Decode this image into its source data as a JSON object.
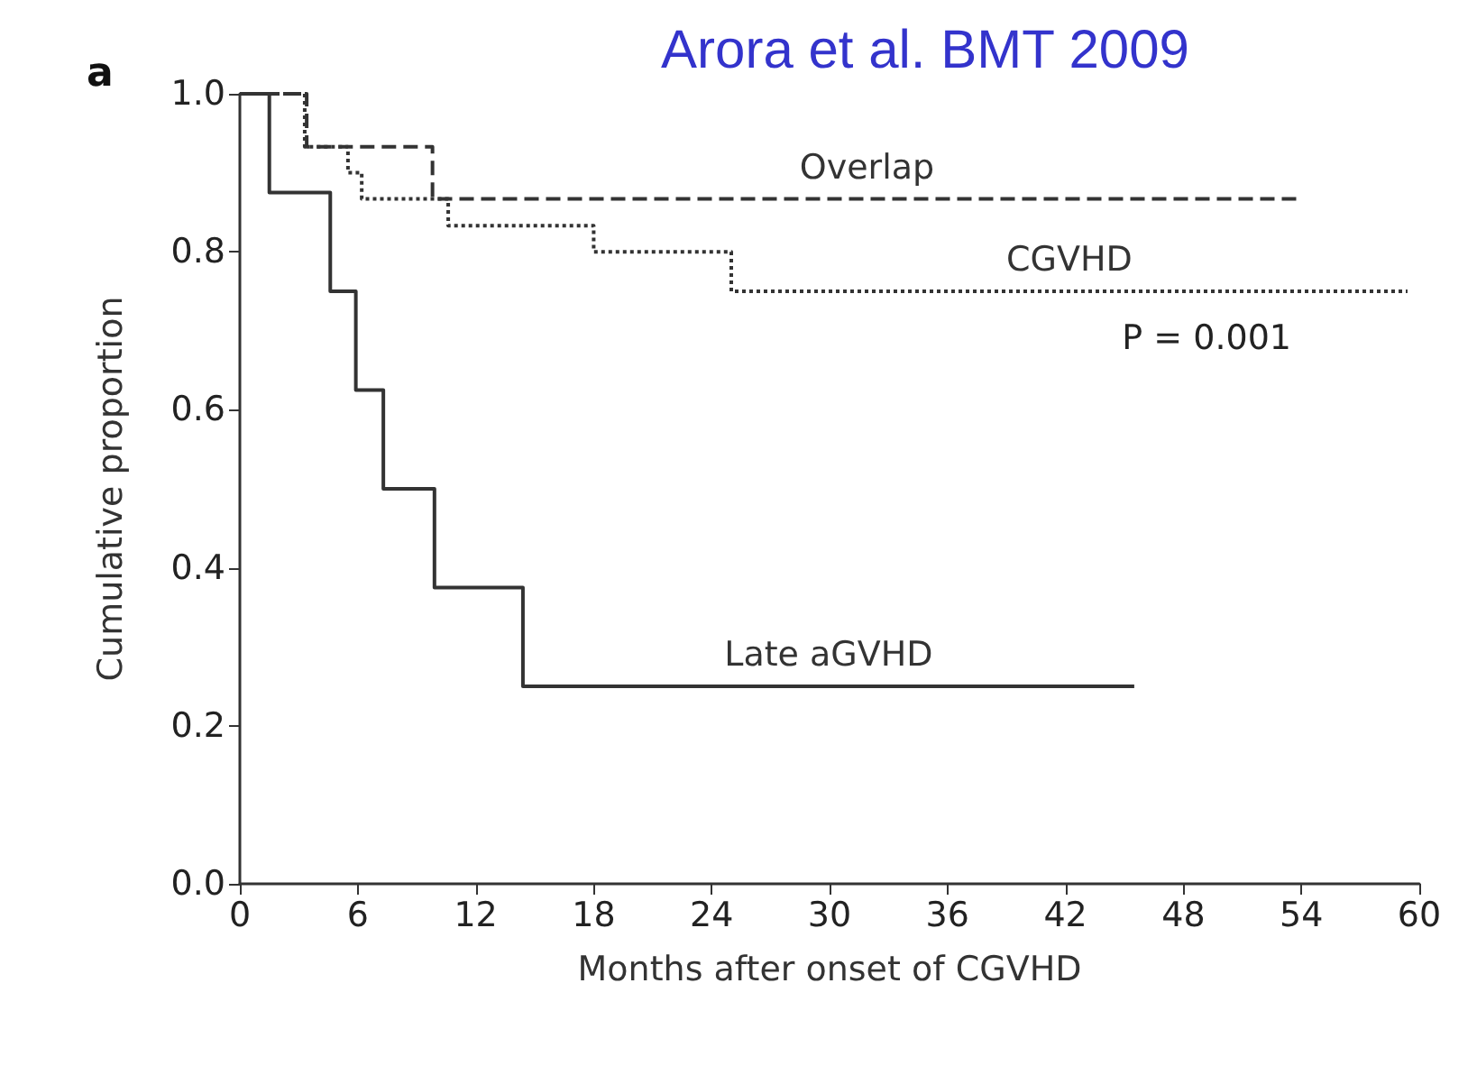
{
  "chart_data": {
    "type": "step",
    "title": "Arora et al. BMT 2009",
    "xlabel": "Months after onset of CGVHD",
    "ylabel": "Cumulative proportion",
    "xlim": [
      0,
      60
    ],
    "xticks": [
      0,
      6,
      12,
      18,
      24,
      30,
      36,
      42,
      48,
      54,
      60
    ],
    "ylim": [
      0,
      1
    ],
    "yticks": [
      {
        "value": 0,
        "label": "0.0"
      },
      {
        "value": 0.2,
        "label": "0.2"
      },
      {
        "value": 0.4,
        "label": "0.4"
      },
      {
        "value": 0.6,
        "label": "0.6"
      },
      {
        "value": 0.8,
        "label": "0.8"
      },
      {
        "value": 1,
        "label": "1.0"
      }
    ],
    "grid": false,
    "legend": false,
    "marker": "none",
    "series": [
      {
        "name": "Late aGVHD",
        "color": "#333333",
        "line_style": "solid",
        "x": [
          0,
          1.5,
          4.6,
          5.9,
          7.3,
          9.9,
          14.4,
          45.5
        ],
        "values": [
          1,
          0.875,
          0.75,
          0.625,
          0.5,
          0.375,
          0.25,
          0.25
        ]
      },
      {
        "name": "Overlap",
        "color": "#333333",
        "line_style": "dashed",
        "x": [
          0,
          3.4,
          9.8,
          54
        ],
        "values": [
          1,
          0.933,
          0.867,
          0.867
        ]
      },
      {
        "name": "CGVHD",
        "color": "#333333",
        "line_style": "dotted",
        "x": [
          0,
          3.3,
          5.5,
          6.2,
          10.6,
          18,
          25,
          59.4
        ],
        "values": [
          1,
          0.933,
          0.9,
          0.867,
          0.833,
          0.8,
          0.75,
          0.75
        ]
      }
    ],
    "annotations": [
      "a",
      "P = 0.001"
    ]
  }
}
